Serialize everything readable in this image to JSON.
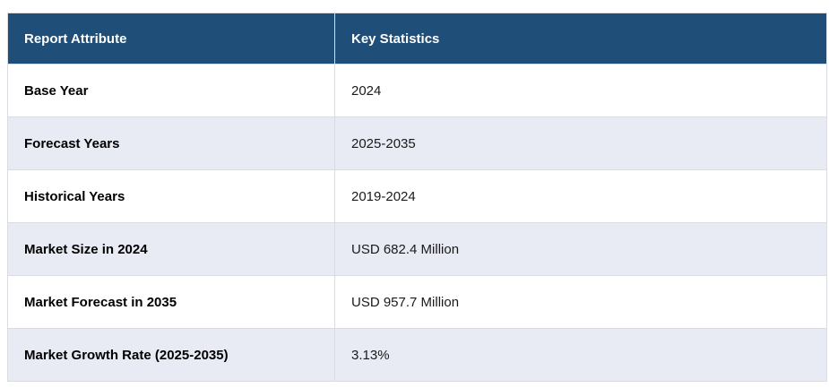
{
  "table": {
    "headers": {
      "attribute": "Report Attribute",
      "statistics": "Key Statistics"
    },
    "rows": [
      {
        "attribute": "Base Year",
        "value": "2024"
      },
      {
        "attribute": "Forecast Years",
        "value": "2025-2035"
      },
      {
        "attribute": "Historical Years",
        "value": "2019-2024"
      },
      {
        "attribute": "Market Size in 2024",
        "value": "USD 682.4 Million"
      },
      {
        "attribute": "Market Forecast in 2035",
        "value": "USD 957.7 Million"
      },
      {
        "attribute": "Market Growth Rate (2025-2035)",
        "value": "3.13%"
      }
    ],
    "colors": {
      "header_bg": "#1F4E79",
      "header_text": "#FFFFFF",
      "row_bg": "#FFFFFF",
      "row_alt_bg": "#E8EAF4",
      "border": "#D9DCE3"
    }
  }
}
